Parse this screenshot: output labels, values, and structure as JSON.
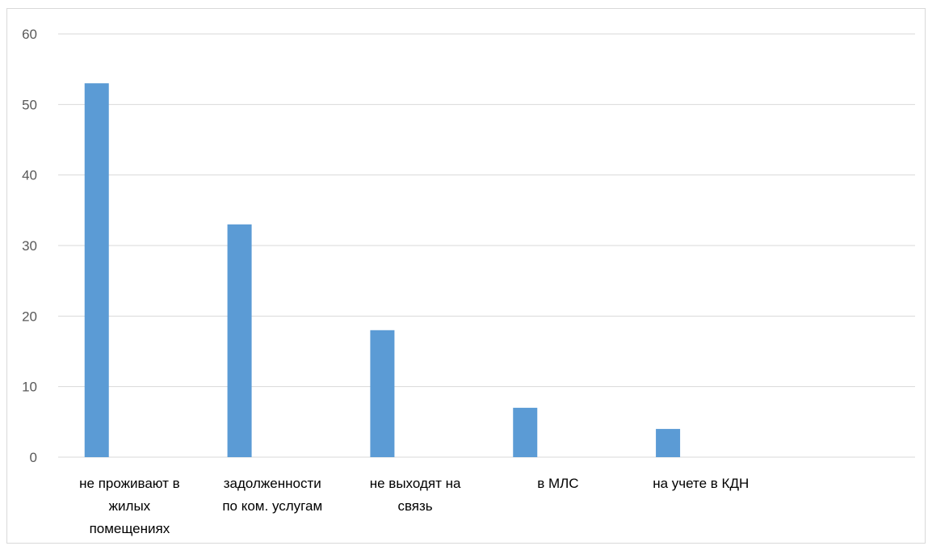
{
  "chart_data": {
    "type": "bar",
    "title": "",
    "xlabel": "",
    "ylabel": "",
    "categories": [
      [
        "не проживают в",
        "жилых",
        "помещениях"
      ],
      [
        "задолженности",
        "по ком. услугам"
      ],
      [
        "не выходят на",
        "связь"
      ],
      [
        "в МЛС"
      ],
      [
        "на учете в КДН"
      ],
      [
        ""
      ]
    ],
    "values": [
      53,
      33,
      18,
      7,
      4,
      null
    ],
    "ylim": [
      0,
      60
    ],
    "yticks": [
      "0",
      "10",
      "20",
      "30",
      "40",
      "50",
      "60"
    ],
    "grid": true,
    "legend": "none",
    "bar_color": "#5b9bd5",
    "grid_color": "#d9d9d9"
  }
}
